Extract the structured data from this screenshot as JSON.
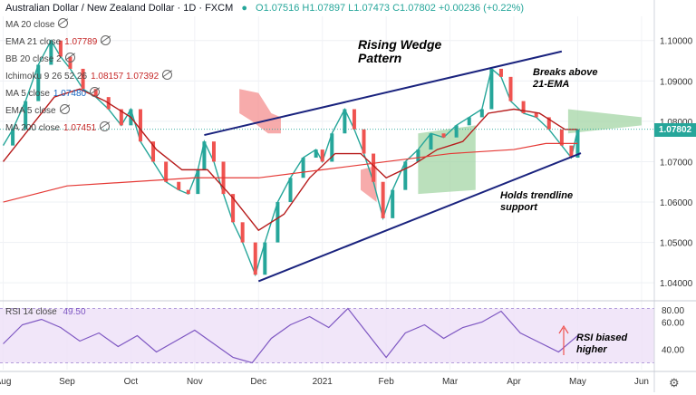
{
  "header": {
    "symbol": "Australian Dollar / New Zealand Dollar · 1D · FXCM",
    "ohlc": "O1.07516 H1.07897 L1.07473 C1.07802 +0.00236 (+0.22%)"
  },
  "indicators": [
    {
      "label": "MA 20 close",
      "value": ""
    },
    {
      "label": "EMA 21 close",
      "value": "1.07789",
      "color": "#c62828"
    },
    {
      "label": "BB 20 close 2",
      "value": ""
    },
    {
      "label": "Ichimoku 9 26 52 26",
      "value": "1.08157  1.07392",
      "color": "#c62828"
    },
    {
      "label": "MA 5 close",
      "value": "1.07480",
      "color": "#1565c0"
    },
    {
      "label": "EMA 5 close",
      "value": ""
    },
    {
      "label": "MA 200 close",
      "value": "1.07451",
      "color": "#c62828"
    }
  ],
  "rsi": {
    "label": "RSI 14 close",
    "value": "49.50"
  },
  "annotations": {
    "wedge_title_1": "Rising Wedge",
    "wedge_title_2": "Pattern",
    "breaks_1": "Breaks above",
    "breaks_2": "21-EMA",
    "holds_1": "Holds trendline",
    "holds_2": "support",
    "rsi_1": "RSI biased",
    "rsi_2": "higher"
  },
  "last_price": "1.07802",
  "colors": {
    "up": "#26a69a",
    "down": "#ef5350",
    "ema": "#b71c1c",
    "ma5": "#1565c0",
    "rsi": "#7e57c2",
    "trend": "#1a237e"
  },
  "chart_data": {
    "type": "line",
    "x_labels": [
      "Aug",
      "Sep",
      "Oct",
      "Nov",
      "Dec",
      "2021",
      "Feb",
      "Mar",
      "Apr",
      "May",
      "Jun"
    ],
    "y_ticks": [
      1.04,
      1.05,
      1.06,
      1.07,
      1.08,
      1.09,
      1.1
    ],
    "y_tick_labels": [
      "1.04000",
      "1.05000",
      "1.06000",
      "1.07000",
      "1.08000",
      "1.09000",
      "1.10000"
    ],
    "ylim": [
      1.036,
      1.106
    ],
    "x_months": [
      0,
      1,
      2,
      3,
      4,
      5,
      6,
      7,
      8,
      9,
      10
    ],
    "series": [
      {
        "name": "Price",
        "points": [
          [
            0.0,
            1.074
          ],
          [
            0.15,
            1.078
          ],
          [
            0.35,
            1.085
          ],
          [
            0.55,
            1.094
          ],
          [
            0.75,
            1.1
          ],
          [
            0.9,
            1.096
          ],
          [
            1.05,
            1.093
          ],
          [
            1.25,
            1.088
          ],
          [
            1.45,
            1.086
          ],
          [
            1.65,
            1.083
          ],
          [
            1.85,
            1.079
          ],
          [
            2.0,
            1.083
          ],
          [
            2.15,
            1.075
          ],
          [
            2.35,
            1.07
          ],
          [
            2.55,
            1.065
          ],
          [
            2.75,
            1.063
          ],
          [
            2.9,
            1.062
          ],
          [
            3.05,
            1.068
          ],
          [
            3.15,
            1.075
          ],
          [
            3.3,
            1.07
          ],
          [
            3.45,
            1.062
          ],
          [
            3.6,
            1.055
          ],
          [
            3.75,
            1.05
          ],
          [
            3.95,
            1.042
          ],
          [
            4.1,
            1.05
          ],
          [
            4.3,
            1.06
          ],
          [
            4.5,
            1.066
          ],
          [
            4.7,
            1.071
          ],
          [
            4.9,
            1.073
          ],
          [
            5.0,
            1.07
          ],
          [
            5.15,
            1.077
          ],
          [
            5.35,
            1.083
          ],
          [
            5.5,
            1.078
          ],
          [
            5.65,
            1.072
          ],
          [
            5.8,
            1.065
          ],
          [
            5.95,
            1.056
          ],
          [
            6.1,
            1.063
          ],
          [
            6.3,
            1.07
          ],
          [
            6.5,
            1.073
          ],
          [
            6.7,
            1.077
          ],
          [
            6.9,
            1.076
          ],
          [
            7.1,
            1.079
          ],
          [
            7.3,
            1.081
          ],
          [
            7.5,
            1.083
          ],
          [
            7.65,
            1.093
          ],
          [
            7.8,
            1.091
          ],
          [
            7.95,
            1.085
          ],
          [
            8.15,
            1.082
          ],
          [
            8.35,
            1.081
          ],
          [
            8.55,
            1.078
          ],
          [
            8.75,
            1.074
          ],
          [
            8.9,
            1.071
          ],
          [
            9.0,
            1.078
          ]
        ]
      },
      {
        "name": "EMA 21",
        "points": [
          [
            0.0,
            1.07
          ],
          [
            0.4,
            1.078
          ],
          [
            0.8,
            1.086
          ],
          [
            1.2,
            1.088
          ],
          [
            1.6,
            1.085
          ],
          [
            2.0,
            1.081
          ],
          [
            2.4,
            1.073
          ],
          [
            2.8,
            1.068
          ],
          [
            3.2,
            1.068
          ],
          [
            3.6,
            1.061
          ],
          [
            4.0,
            1.053
          ],
          [
            4.4,
            1.057
          ],
          [
            4.8,
            1.066
          ],
          [
            5.2,
            1.072
          ],
          [
            5.6,
            1.072
          ],
          [
            6.0,
            1.066
          ],
          [
            6.4,
            1.069
          ],
          [
            6.8,
            1.073
          ],
          [
            7.2,
            1.075
          ],
          [
            7.6,
            1.082
          ],
          [
            8.0,
            1.083
          ],
          [
            8.4,
            1.082
          ],
          [
            8.8,
            1.078
          ],
          [
            9.0,
            1.078
          ]
        ]
      },
      {
        "name": "MA 200",
        "points": [
          [
            0.0,
            1.06
          ],
          [
            1.0,
            1.064
          ],
          [
            2.0,
            1.065
          ],
          [
            3.0,
            1.066
          ],
          [
            4.0,
            1.066
          ],
          [
            5.0,
            1.068
          ],
          [
            6.0,
            1.07
          ],
          [
            7.0,
            1.072
          ],
          [
            8.0,
            1.073
          ],
          [
            8.5,
            1.0745
          ],
          [
            9.0,
            1.0745
          ]
        ]
      },
      {
        "name": "Upper trendline",
        "points": [
          [
            3.15,
            1.0766
          ],
          [
            8.75,
            1.0973
          ]
        ]
      },
      {
        "name": "Lower trendline",
        "points": [
          [
            4.0,
            1.0404
          ],
          [
            9.05,
            1.0721
          ]
        ]
      }
    ],
    "cloud_red": [
      [
        [
          3.7,
          1.088
        ],
        [
          4.0,
          1.087
        ],
        [
          4.2,
          1.082
        ],
        [
          4.35,
          1.081
        ],
        [
          4.35,
          1.077
        ],
        [
          4.15,
          1.077
        ],
        [
          3.9,
          1.08
        ],
        [
          3.7,
          1.082
        ]
      ],
      [
        [
          5.6,
          1.068
        ],
        [
          5.85,
          1.069
        ],
        [
          5.85,
          1.06
        ],
        [
          5.6,
          1.063
        ]
      ]
    ],
    "cloud_green": [
      [
        [
          6.5,
          1.077
        ],
        [
          7.4,
          1.079
        ],
        [
          7.4,
          1.063
        ],
        [
          6.5,
          1.062
        ]
      ],
      [
        [
          8.85,
          1.083
        ],
        [
          10.0,
          1.081
        ],
        [
          10.0,
          1.079
        ],
        [
          8.85,
          1.077
        ]
      ]
    ],
    "rsi_ylim": [
      25,
      75
    ],
    "rsi_ticks": [
      40,
      60,
      80
    ],
    "rsi_points": [
      [
        0.0,
        44
      ],
      [
        0.3,
        58
      ],
      [
        0.6,
        62
      ],
      [
        0.9,
        56
      ],
      [
        1.2,
        46
      ],
      [
        1.5,
        52
      ],
      [
        1.8,
        42
      ],
      [
        2.1,
        50
      ],
      [
        2.4,
        38
      ],
      [
        2.7,
        46
      ],
      [
        3.0,
        54
      ],
      [
        3.3,
        44
      ],
      [
        3.6,
        34
      ],
      [
        3.9,
        30
      ],
      [
        4.2,
        48
      ],
      [
        4.5,
        58
      ],
      [
        4.8,
        64
      ],
      [
        5.1,
        56
      ],
      [
        5.4,
        70
      ],
      [
        5.7,
        52
      ],
      [
        6.0,
        34
      ],
      [
        6.3,
        52
      ],
      [
        6.6,
        58
      ],
      [
        6.9,
        48
      ],
      [
        7.2,
        56
      ],
      [
        7.5,
        60
      ],
      [
        7.8,
        68
      ],
      [
        8.1,
        52
      ],
      [
        8.4,
        45
      ],
      [
        8.7,
        38
      ],
      [
        9.0,
        50
      ]
    ]
  }
}
